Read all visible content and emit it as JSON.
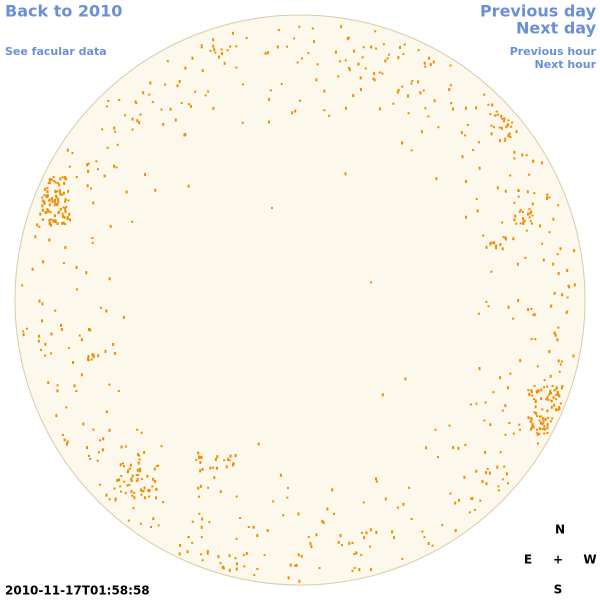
{
  "links": {
    "back": "Back to 2010",
    "facular": "See facular data",
    "previous_day": "Previous day",
    "next_day": "Next day",
    "previous_hour": "Previous hour",
    "next_hour": "Next hour"
  },
  "timestamp": "2010-11-17T01:58:58",
  "compass": {
    "north": "N",
    "east": "E",
    "center": "+",
    "west": "W",
    "south": "S"
  }
}
